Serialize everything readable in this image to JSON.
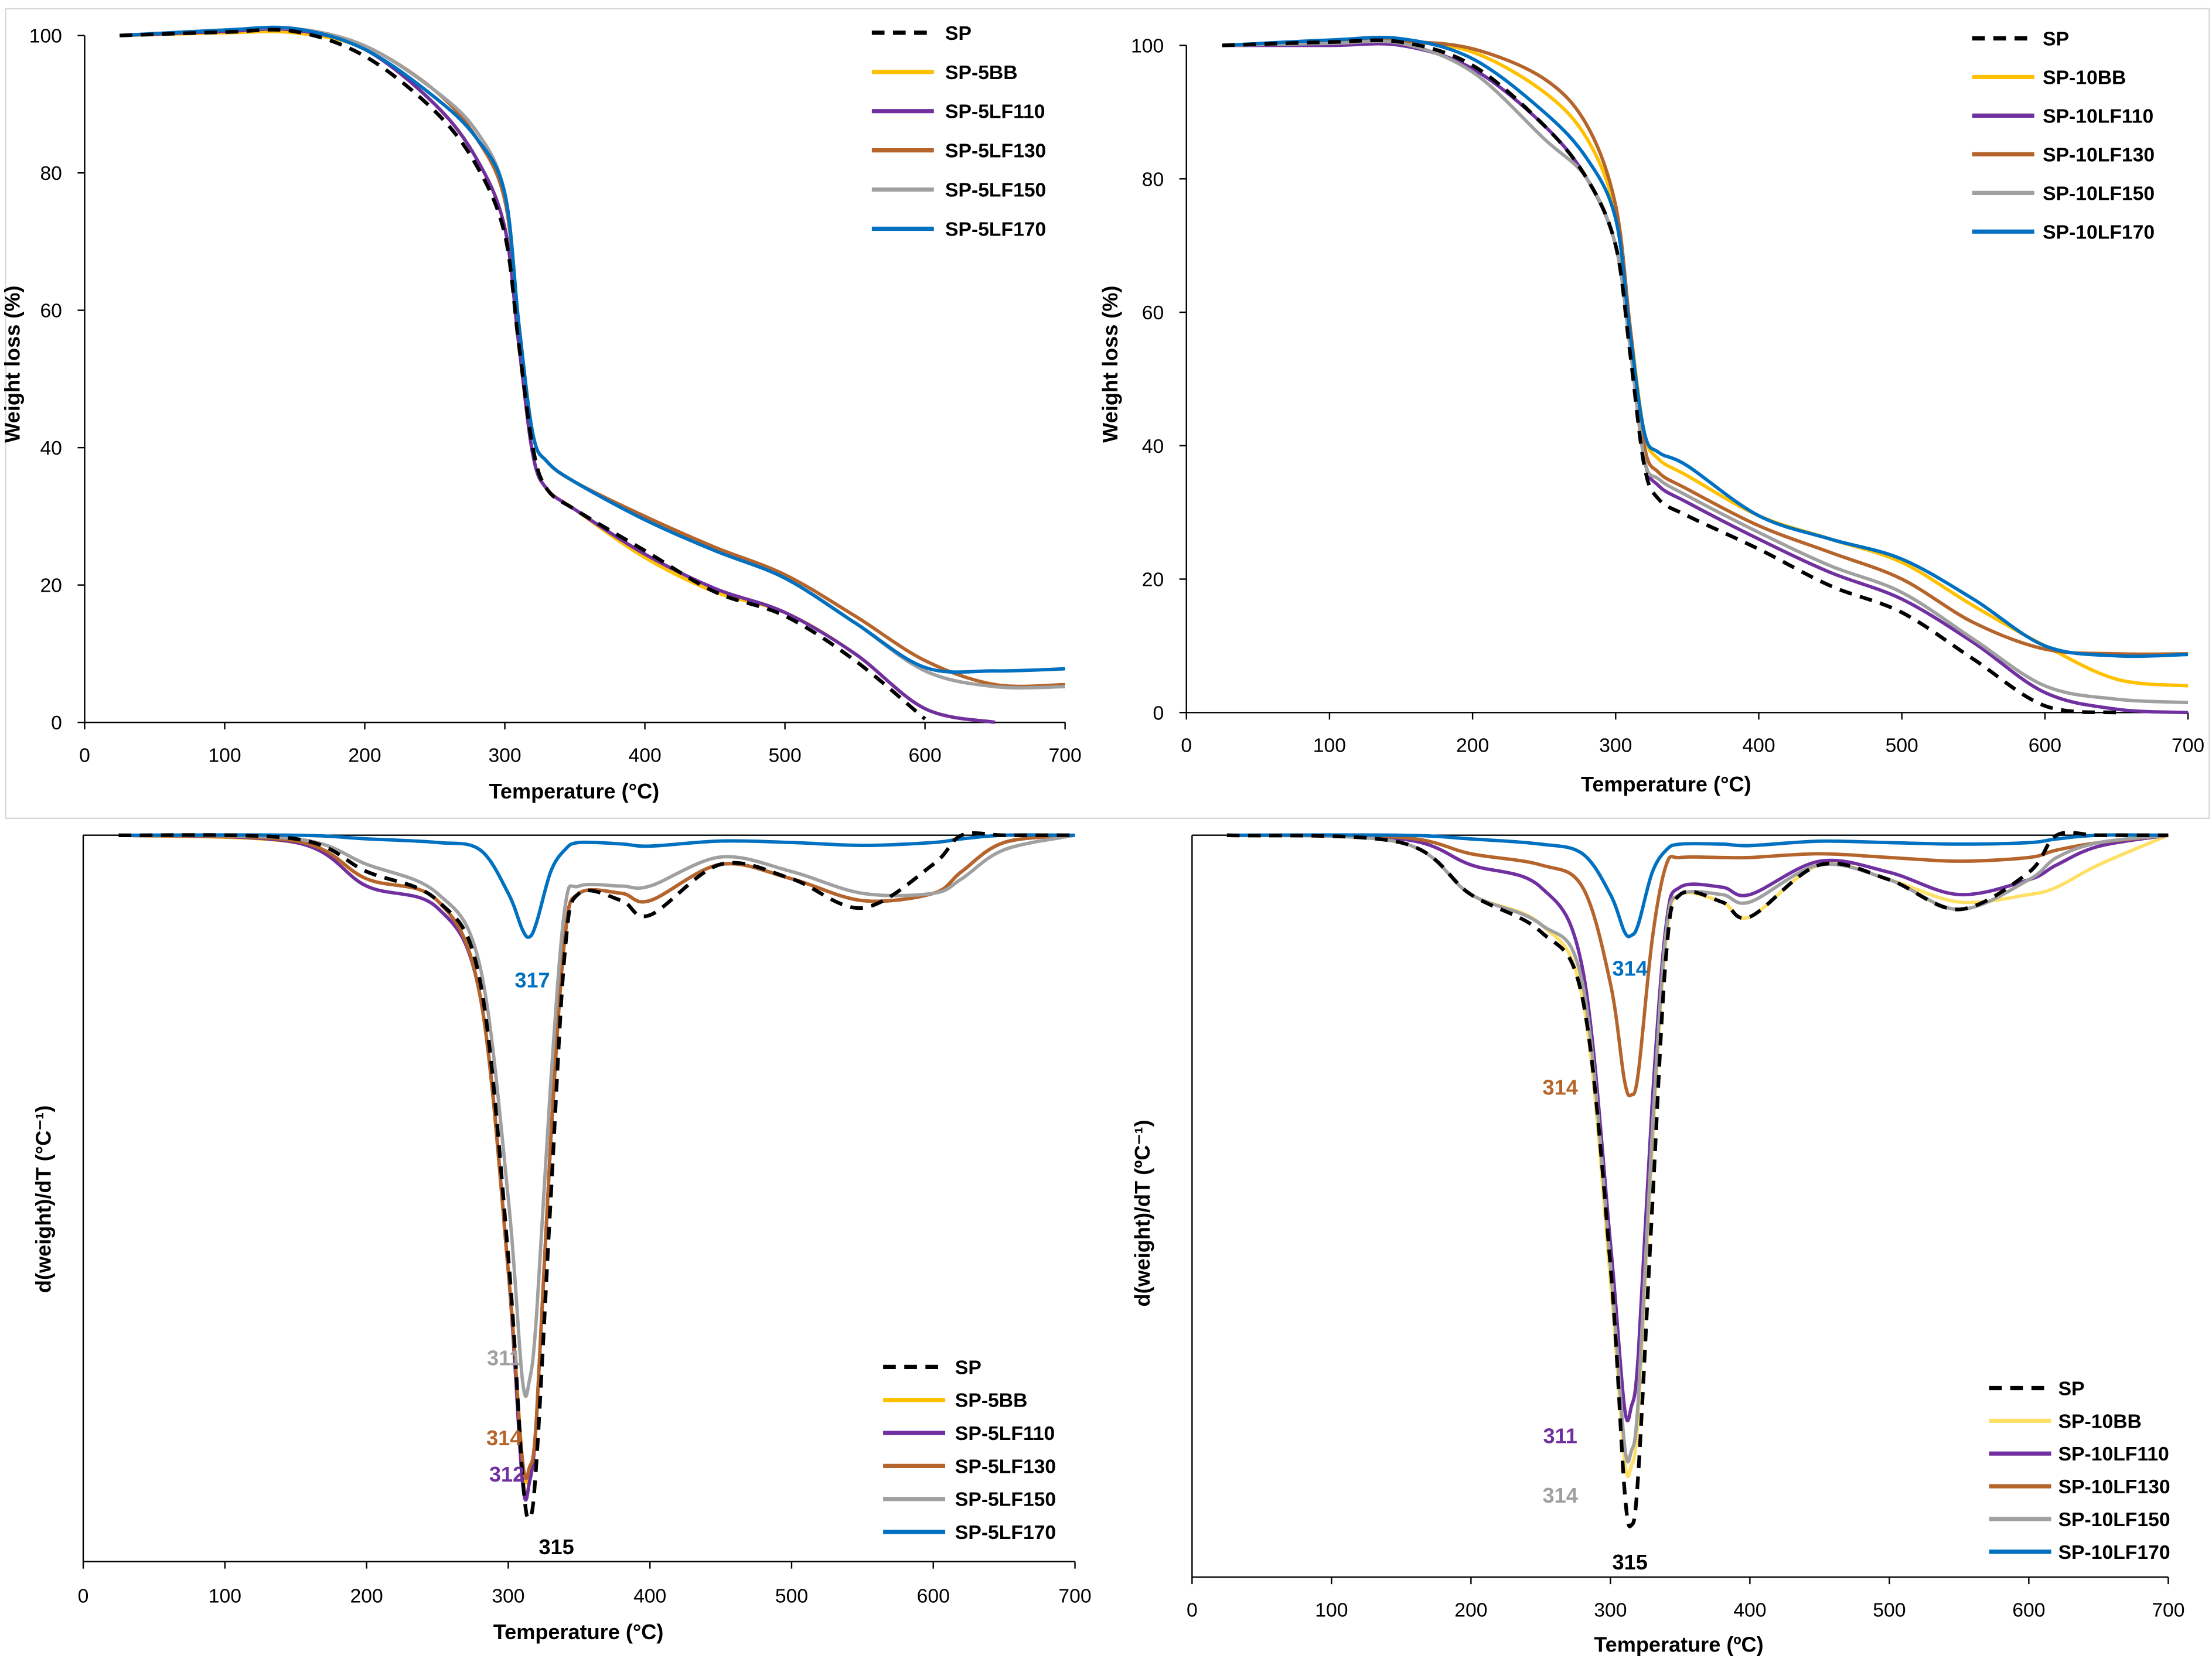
{
  "chart_data": [
    {
      "type": "line",
      "title": "",
      "xlabel": "Temperature (°C)",
      "ylabel": "Weight loss (%)",
      "xlim": [
        0,
        700
      ],
      "ylim": [
        0,
        100
      ],
      "xticks": [
        "0",
        "100",
        "200",
        "300",
        "400",
        "500",
        "600",
        "700"
      ],
      "yticks": [
        "0",
        "20",
        "40",
        "60",
        "80",
        "100"
      ],
      "legend": "top-right",
      "x": [
        25,
        100,
        150,
        200,
        250,
        280,
        300,
        310,
        320,
        330,
        350,
        400,
        450,
        500,
        550,
        600,
        650,
        700
      ],
      "series": [
        {
          "name": "SP",
          "color": "#000000",
          "dashed": true,
          "values": [
            100,
            100.5,
            100.6,
            97,
            89,
            81,
            71,
            55,
            40,
            34,
            31,
            25,
            19,
            15.5,
            9,
            0.5,
            null,
            null
          ]
        },
        {
          "name": "SP-5BB",
          "color": "#FFC000",
          "values": [
            100,
            100.4,
            100.4,
            98,
            90,
            82,
            72,
            55,
            39,
            34,
            31,
            24,
            19,
            16,
            10,
            2,
            0,
            null
          ]
        },
        {
          "name": "SP-5LF110",
          "color": "#7030A0",
          "values": [
            100,
            100.6,
            100.8,
            98,
            90,
            82,
            72,
            55,
            39,
            34,
            31,
            24.5,
            19.5,
            16,
            10,
            2,
            0,
            null
          ]
        },
        {
          "name": "SP-5LF130",
          "color": "#B5652B",
          "values": [
            100,
            100.8,
            101,
            98.5,
            92,
            85,
            76,
            58,
            42,
            38,
            35,
            30,
            25.5,
            21.5,
            15.5,
            9,
            5.5,
            5.5
          ]
        },
        {
          "name": "SP-5LF150",
          "color": "#A0A0A0",
          "values": [
            100,
            100.8,
            101,
            98.5,
            92,
            86,
            77,
            58,
            42,
            38,
            35,
            29.5,
            25,
            21,
            14.5,
            7.5,
            5.2,
            5.2
          ]
        },
        {
          "name": "SP-5LF170",
          "color": "#0070C0",
          "values": [
            100,
            100.8,
            101,
            98,
            91,
            85,
            77,
            58,
            42,
            38,
            35,
            29.5,
            25,
            21,
            14.5,
            8,
            7.5,
            7.8
          ]
        }
      ]
    },
    {
      "type": "line",
      "title": "",
      "xlabel": "Temperature (°C)",
      "ylabel": "Weight loss (%)",
      "xlim": [
        0,
        700
      ],
      "ylim": [
        0,
        100
      ],
      "xticks": [
        "0",
        "100",
        "200",
        "300",
        "400",
        "500",
        "600",
        "700"
      ],
      "yticks": [
        "0",
        "20",
        "40",
        "60",
        "80",
        "100"
      ],
      "legend": "top-right",
      "x": [
        25,
        100,
        150,
        200,
        250,
        280,
        300,
        310,
        320,
        330,
        350,
        400,
        450,
        500,
        550,
        600,
        650,
        700
      ],
      "series": [
        {
          "name": "SP",
          "color": "#000000",
          "dashed": true,
          "values": [
            100,
            100.5,
            100.5,
            97,
            88,
            80,
            70,
            54,
            37,
            32,
            29.5,
            24.5,
            19,
            15,
            8,
            1,
            0,
            null
          ]
        },
        {
          "name": "SP-10BB",
          "color": "#FFC000",
          "values": [
            100,
            100.5,
            100.6,
            99,
            93,
            86,
            75,
            58,
            42,
            38,
            35.5,
            29.5,
            26,
            22.5,
            16,
            10,
            5,
            4
          ]
        },
        {
          "name": "SP-10LF110",
          "color": "#7030A0",
          "values": [
            100,
            100,
            100,
            96.5,
            88,
            80,
            70,
            55,
            38,
            34,
            31.5,
            26,
            21,
            17,
            10.5,
            3,
            0.5,
            0
          ]
        },
        {
          "name": "SP-10LF130",
          "color": "#B5652B",
          "values": [
            100,
            100.5,
            100.6,
            99.5,
            95,
            88,
            76,
            58,
            40,
            36,
            33.5,
            28,
            24,
            20,
            13.5,
            9.5,
            8.8,
            8.8
          ]
        },
        {
          "name": "SP-10LF150",
          "color": "#A0A0A0",
          "values": [
            100,
            100.3,
            100.3,
            96,
            86,
            80,
            70,
            55,
            38,
            35,
            32.5,
            27,
            22,
            18,
            11,
            4,
            2,
            1.5
          ]
        },
        {
          "name": "SP-10LF170",
          "color": "#0070C0",
          "values": [
            100,
            100.8,
            101,
            98,
            90,
            83,
            74,
            57,
            42,
            39,
            37,
            29.5,
            26,
            23,
            17,
            10,
            8.5,
            8.7
          ]
        }
      ]
    },
    {
      "type": "line",
      "title": "",
      "xlabel": "Temperature (°C)",
      "ylabel": "d(weight)/dT (°C⁻¹)",
      "xlim": [
        0,
        700
      ],
      "ylim": [
        -1,
        0
      ],
      "xticks": [
        "0",
        "100",
        "200",
        "300",
        "400",
        "500",
        "600",
        "700"
      ],
      "yticks": [],
      "legend": "bottom-right",
      "x": [
        25,
        150,
        200,
        250,
        280,
        300,
        310,
        315,
        320,
        330,
        340,
        350,
        380,
        400,
        450,
        500,
        550,
        600,
        620,
        650,
        700
      ],
      "series": [
        {
          "name": "SP",
          "color": "#000000",
          "dashed": true,
          "values": [
            0,
            -0.005,
            -0.05,
            -0.09,
            -0.2,
            -0.58,
            -0.88,
            -0.94,
            -0.86,
            -0.5,
            -0.16,
            -0.08,
            -0.09,
            -0.11,
            -0.04,
            -0.06,
            -0.1,
            -0.04,
            0,
            0,
            0
          ]
        },
        {
          "name": "SP-5BB",
          "color": "#FFC000",
          "values": [
            0,
            -0.01,
            -0.06,
            -0.09,
            -0.22,
            -0.6,
            -0.86,
            -0.88,
            -0.8,
            -0.42,
            -0.14,
            -0.08,
            -0.08,
            -0.09,
            -0.04,
            -0.06,
            -0.09,
            -0.08,
            -0.05,
            -0.01,
            0
          ]
        },
        {
          "name": "SP-5LF110",
          "color": "#7030A0",
          "values": [
            0,
            -0.01,
            -0.07,
            -0.1,
            -0.22,
            -0.6,
            -0.89,
            -0.89,
            -0.8,
            -0.42,
            -0.14,
            -0.08,
            -0.08,
            -0.09,
            -0.04,
            -0.06,
            -0.09,
            -0.08,
            -0.05,
            -0.01,
            0
          ]
        },
        {
          "name": "SP-5LF130",
          "color": "#B5652B",
          "values": [
            0,
            -0.008,
            -0.06,
            -0.09,
            -0.22,
            -0.6,
            -0.86,
            -0.87,
            -0.8,
            -0.42,
            -0.14,
            -0.08,
            -0.08,
            -0.09,
            -0.04,
            -0.06,
            -0.09,
            -0.08,
            -0.05,
            -0.01,
            0
          ]
        },
        {
          "name": "SP-5LF150",
          "color": "#A0A0A0",
          "values": [
            0,
            -0.005,
            -0.04,
            -0.08,
            -0.18,
            -0.5,
            -0.75,
            -0.75,
            -0.66,
            -0.34,
            -0.1,
            -0.07,
            -0.07,
            -0.07,
            -0.03,
            -0.05,
            -0.08,
            -0.08,
            -0.06,
            -0.02,
            0
          ]
        },
        {
          "name": "SP-5LF170",
          "color": "#0070C0",
          "values": [
            0,
            0,
            -0.005,
            -0.01,
            -0.02,
            -0.08,
            -0.13,
            -0.14,
            -0.12,
            -0.05,
            -0.02,
            -0.01,
            -0.012,
            -0.015,
            -0.008,
            -0.01,
            -0.014,
            -0.01,
            -0.005,
            0,
            0
          ]
        }
      ],
      "annotations": [
        {
          "text": "317",
          "x": 317,
          "y": -0.2,
          "color": "#0070C0"
        },
        {
          "text": "311",
          "x": 297,
          "y": -0.72,
          "color": "#A0A0A0"
        },
        {
          "text": "314",
          "x": 297,
          "y": -0.83,
          "color": "#B5652B"
        },
        {
          "text": "312",
          "x": 299,
          "y": -0.88,
          "color": "#7030A0"
        },
        {
          "text": "315",
          "x": 334,
          "y": -0.98,
          "color": "#000000"
        }
      ]
    },
    {
      "type": "line",
      "title": "",
      "xlabel": "Temperature (ºC)",
      "ylabel": "d(weight)/dT (ºC⁻¹)",
      "xlim": [
        0,
        700
      ],
      "ylim": [
        -1,
        0
      ],
      "xticks": [
        "0",
        "100",
        "200",
        "300",
        "400",
        "500",
        "600",
        "700"
      ],
      "yticks": [],
      "legend": "bottom-right",
      "x": [
        25,
        150,
        200,
        250,
        280,
        300,
        310,
        315,
        320,
        330,
        340,
        350,
        380,
        400,
        450,
        500,
        550,
        600,
        620,
        650,
        700
      ],
      "series": [
        {
          "name": "SP",
          "color": "#000000",
          "dashed": true,
          "values": [
            0,
            -0.01,
            -0.08,
            -0.13,
            -0.22,
            -0.58,
            -0.88,
            -0.93,
            -0.86,
            -0.5,
            -0.16,
            -0.08,
            -0.09,
            -0.11,
            -0.04,
            -0.06,
            -0.1,
            -0.05,
            0,
            0,
            0
          ]
        },
        {
          "name": "SP-10BB",
          "color": "#FFE066",
          "values": [
            0,
            -0.01,
            -0.08,
            -0.12,
            -0.22,
            -0.6,
            -0.84,
            -0.85,
            -0.78,
            -0.42,
            -0.14,
            -0.08,
            -0.09,
            -0.11,
            -0.04,
            -0.06,
            -0.09,
            -0.08,
            -0.07,
            -0.04,
            0
          ]
        },
        {
          "name": "SP-10LF110",
          "color": "#7030A0",
          "values": [
            0,
            -0.005,
            -0.04,
            -0.07,
            -0.18,
            -0.55,
            -0.77,
            -0.77,
            -0.7,
            -0.36,
            -0.12,
            -0.07,
            -0.07,
            -0.08,
            -0.035,
            -0.05,
            -0.08,
            -0.06,
            -0.04,
            -0.015,
            0
          ]
        },
        {
          "name": "SP-10LF130",
          "color": "#B5652B",
          "values": [
            0,
            -0.003,
            -0.025,
            -0.04,
            -0.07,
            -0.2,
            -0.33,
            -0.35,
            -0.32,
            -0.14,
            -0.04,
            -0.03,
            -0.03,
            -0.03,
            -0.025,
            -0.03,
            -0.035,
            -0.03,
            -0.02,
            -0.01,
            0
          ]
        },
        {
          "name": "SP-10LF150",
          "color": "#A0A0A0",
          "values": [
            0,
            -0.01,
            -0.08,
            -0.12,
            -0.2,
            -0.58,
            -0.82,
            -0.83,
            -0.76,
            -0.4,
            -0.13,
            -0.08,
            -0.08,
            -0.09,
            -0.04,
            -0.06,
            -0.1,
            -0.06,
            -0.03,
            -0.01,
            0
          ]
        },
        {
          "name": "SP-10LF170",
          "color": "#0070C0",
          "values": [
            0,
            0,
            -0.005,
            -0.012,
            -0.025,
            -0.08,
            -0.13,
            -0.135,
            -0.12,
            -0.05,
            -0.02,
            -0.012,
            -0.012,
            -0.014,
            -0.008,
            -0.01,
            -0.012,
            -0.01,
            -0.005,
            0,
            0
          ]
        }
      ],
      "annotations": [
        {
          "text": "314",
          "x": 314,
          "y": -0.18,
          "color": "#0070C0"
        },
        {
          "text": "314",
          "x": 264,
          "y": -0.34,
          "color": "#B5652B"
        },
        {
          "text": "311",
          "x": 264,
          "y": -0.81,
          "color": "#7030A0"
        },
        {
          "text": "314",
          "x": 264,
          "y": -0.89,
          "color": "#A0A0A0"
        },
        {
          "text": "315",
          "x": 314,
          "y": -0.98,
          "color": "#000000"
        }
      ]
    }
  ]
}
